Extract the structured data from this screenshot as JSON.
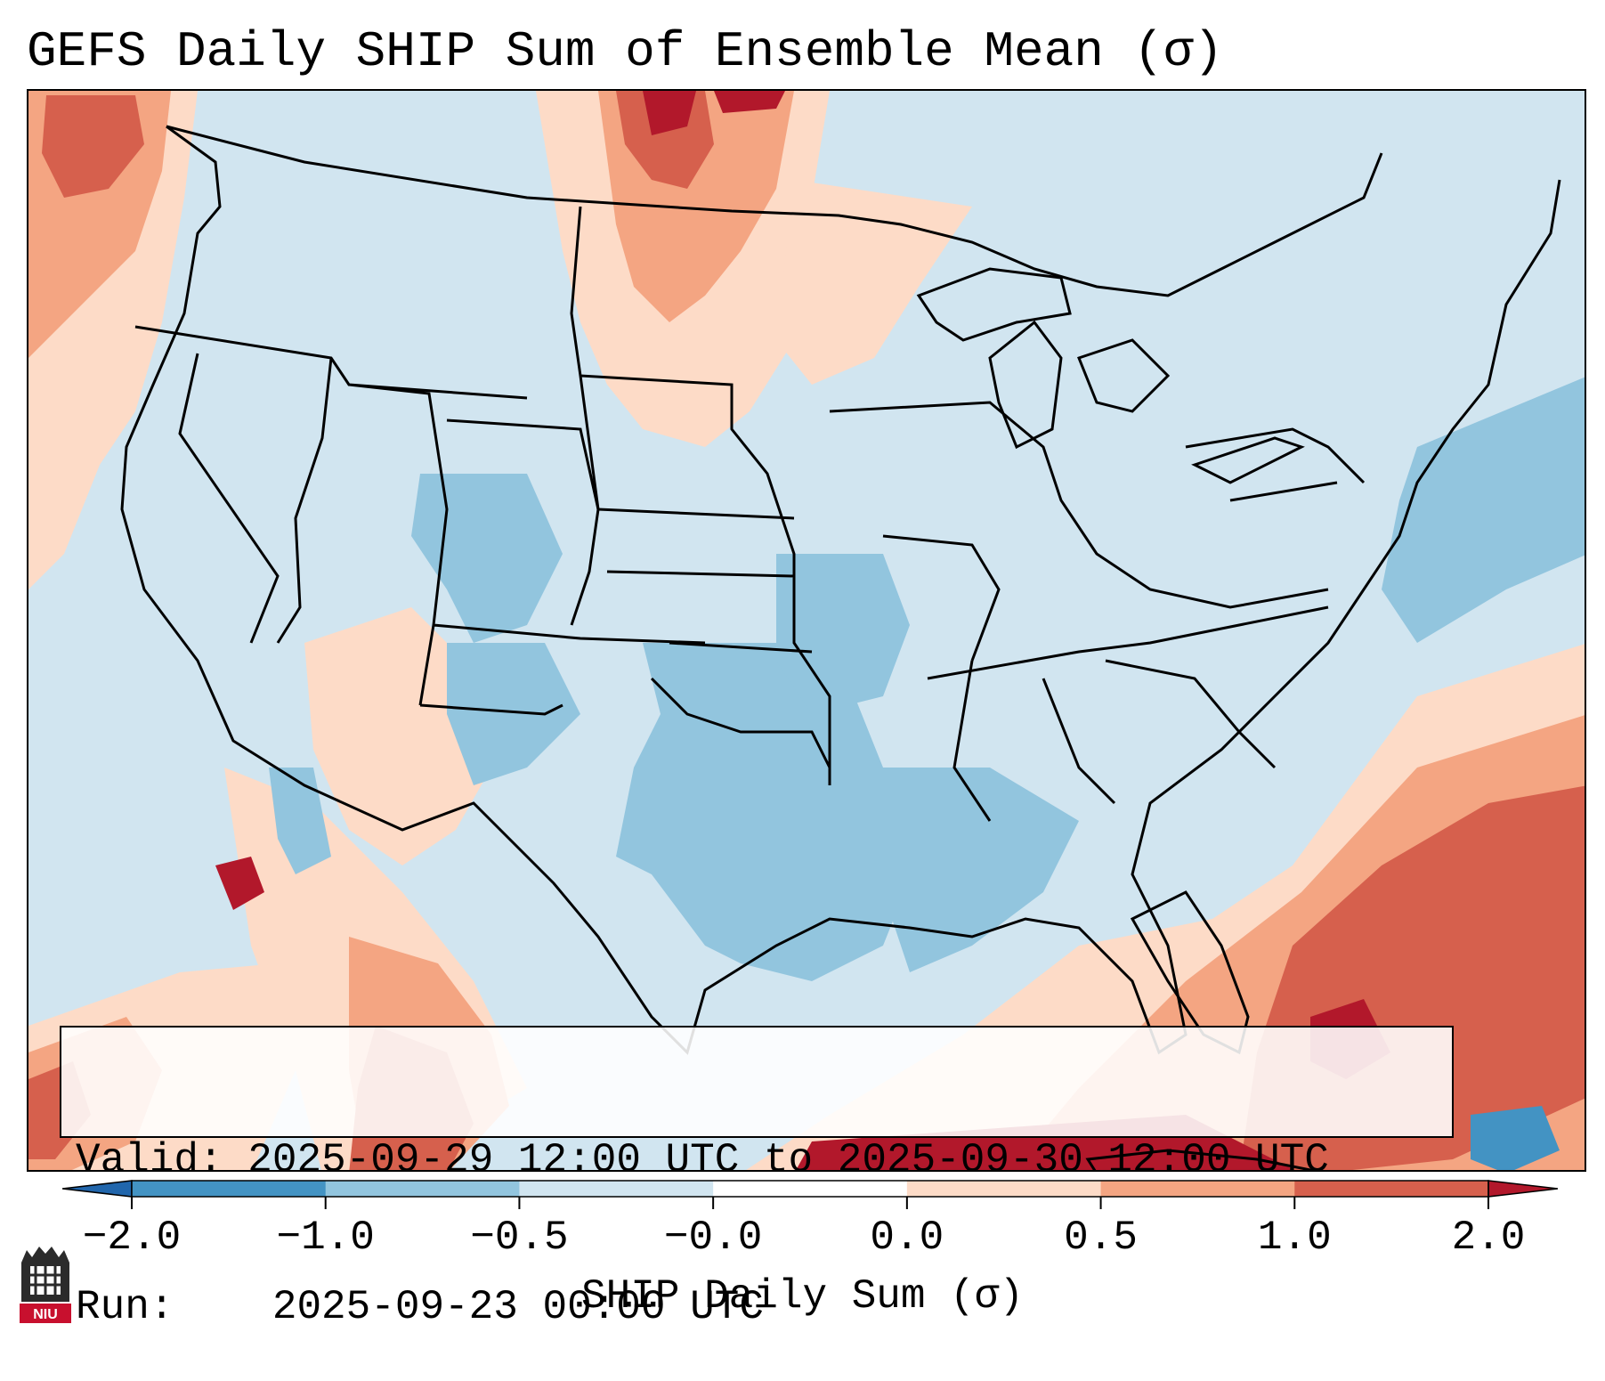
{
  "title": "GEFS Daily SHIP Sum of Ensemble Mean (σ)",
  "legend": {
    "valid_label": "Valid:",
    "valid_value": "2025-09-29 12:00 UTC to 2025-09-30 12:00 UTC",
    "run_label": "Run:",
    "run_value": "2025-09-23 00:00 UTC"
  },
  "colorbar": {
    "label": "SHIP Daily Sum (σ)",
    "ticks": [
      "−2.0",
      "−1.0",
      "−0.5",
      "−0.0",
      "0.0",
      "0.5",
      "1.0",
      "2.0"
    ],
    "colors": [
      "#2166ac",
      "#4393c3",
      "#92c5de",
      "#d1e5f0",
      "#ffffff",
      "#fddbc7",
      "#f4a582",
      "#d6604d",
      "#b2182b"
    ]
  },
  "map": {
    "region": "Contiguous United States",
    "background_color": "#d1e5f0"
  },
  "logo": {
    "text": "NIU",
    "color": "#c8102e"
  }
}
